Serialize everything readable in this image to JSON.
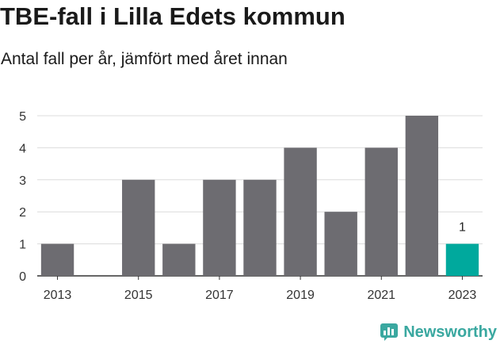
{
  "title": "TBE-fall i Lilla Edets kommun",
  "subtitle": "Antal fall per år, jämfört med året innan",
  "brand": {
    "name": "Newsworthy",
    "icon": "bar-chart-speech-icon",
    "color": "#3aa8a0"
  },
  "chart_data": {
    "type": "bar",
    "title": "TBE-fall i Lilla Edets kommun",
    "subtitle": "Antal fall per år, jämfört med året innan",
    "xlabel": "",
    "ylabel": "",
    "categories": [
      "2013",
      "2014",
      "2015",
      "2016",
      "2017",
      "2018",
      "2019",
      "2020",
      "2021",
      "2022",
      "2023"
    ],
    "x_tick_labels": [
      "2013",
      "2015",
      "2017",
      "2019",
      "2021",
      "2023"
    ],
    "values": [
      1,
      0,
      3,
      1,
      3,
      3,
      4,
      2,
      4,
      5,
      1
    ],
    "ylim": [
      0,
      5
    ],
    "y_ticks": [
      0,
      1,
      2,
      3,
      4,
      5
    ],
    "grid": true,
    "colors": {
      "default": "#6d6c71",
      "highlight": "#00a99d"
    },
    "highlight_category": "2023",
    "data_labels": [
      {
        "category": "2023",
        "value": "1"
      }
    ]
  }
}
